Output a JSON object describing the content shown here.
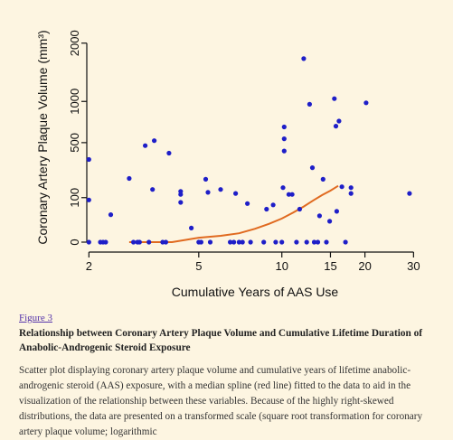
{
  "chart_data": {
    "type": "scatter",
    "title": "",
    "xlabel": "Cumulative Years of AAS Use",
    "ylabel": "Coronary Artery Plaque Volume (mm³)",
    "x_scale": "log",
    "y_scale": "sqrt",
    "xlim": [
      1.85,
      33
    ],
    "ylim": [
      0,
      2200
    ],
    "x_ticks": [
      2,
      5,
      10,
      15,
      20,
      30
    ],
    "y_ticks": [
      0,
      100,
      500,
      1000,
      2000
    ],
    "point_color": "#1e1ec8",
    "curve_color": "#e06a20",
    "series": [
      {
        "type": "scatter",
        "points": [
          {
            "x": 2,
            "y": 345
          },
          {
            "x": 2,
            "y": 90
          },
          {
            "x": 2,
            "y": 0
          },
          {
            "x": 2.2,
            "y": 0
          },
          {
            "x": 2.25,
            "y": 0
          },
          {
            "x": 2.3,
            "y": 0
          },
          {
            "x": 2.4,
            "y": 38
          },
          {
            "x": 2.8,
            "y": 205
          },
          {
            "x": 2.9,
            "y": 0
          },
          {
            "x": 3.0,
            "y": 0
          },
          {
            "x": 3.05,
            "y": 0
          },
          {
            "x": 3.2,
            "y": 470
          },
          {
            "x": 3.3,
            "y": 0
          },
          {
            "x": 3.4,
            "y": 140
          },
          {
            "x": 3.45,
            "y": 520
          },
          {
            "x": 3.7,
            "y": 0
          },
          {
            "x": 3.8,
            "y": 0
          },
          {
            "x": 3.9,
            "y": 400
          },
          {
            "x": 4.3,
            "y": 130
          },
          {
            "x": 4.3,
            "y": 115
          },
          {
            "x": 4.3,
            "y": 80
          },
          {
            "x": 4.7,
            "y": 10
          },
          {
            "x": 5.0,
            "y": 0
          },
          {
            "x": 5.1,
            "y": 0
          },
          {
            "x": 5.3,
            "y": 200
          },
          {
            "x": 5.4,
            "y": 125
          },
          {
            "x": 5.5,
            "y": 0
          },
          {
            "x": 6.0,
            "y": 140
          },
          {
            "x": 6.5,
            "y": 0
          },
          {
            "x": 6.7,
            "y": 0
          },
          {
            "x": 6.8,
            "y": 120
          },
          {
            "x": 7.0,
            "y": 0
          },
          {
            "x": 7.2,
            "y": 0
          },
          {
            "x": 7.5,
            "y": 75
          },
          {
            "x": 7.7,
            "y": 0
          },
          {
            "x": 8.6,
            "y": 0
          },
          {
            "x": 8.8,
            "y": 55
          },
          {
            "x": 9.3,
            "y": 70
          },
          {
            "x": 9.5,
            "y": 0
          },
          {
            "x": 10.0,
            "y": 0
          },
          {
            "x": 10.2,
            "y": 670
          },
          {
            "x": 10.2,
            "y": 540
          },
          {
            "x": 10.2,
            "y": 420
          },
          {
            "x": 10.1,
            "y": 150
          },
          {
            "x": 10.6,
            "y": 115
          },
          {
            "x": 10.9,
            "y": 115
          },
          {
            "x": 11.3,
            "y": 0
          },
          {
            "x": 11.6,
            "y": 55
          },
          {
            "x": 12.0,
            "y": 1700
          },
          {
            "x": 12.3,
            "y": 0
          },
          {
            "x": 12.6,
            "y": 960
          },
          {
            "x": 12.9,
            "y": 280
          },
          {
            "x": 13.1,
            "y": 0
          },
          {
            "x": 13.5,
            "y": 0
          },
          {
            "x": 13.7,
            "y": 35
          },
          {
            "x": 14.1,
            "y": 200
          },
          {
            "x": 14.5,
            "y": 0
          },
          {
            "x": 14.9,
            "y": 22
          },
          {
            "x": 15.5,
            "y": 1040
          },
          {
            "x": 15.7,
            "y": 680
          },
          {
            "x": 16.1,
            "y": 740
          },
          {
            "x": 15.8,
            "y": 48
          },
          {
            "x": 16.5,
            "y": 155
          },
          {
            "x": 17.0,
            "y": 0
          },
          {
            "x": 17.8,
            "y": 150
          },
          {
            "x": 17.8,
            "y": 120
          },
          {
            "x": 20.2,
            "y": 980
          },
          {
            "x": 29.0,
            "y": 120
          }
        ]
      },
      {
        "type": "line",
        "points": [
          {
            "x": 2.8,
            "y": 0
          },
          {
            "x": 4.0,
            "y": 0
          },
          {
            "x": 5.0,
            "y": 1
          },
          {
            "x": 6.0,
            "y": 2
          },
          {
            "x": 7.0,
            "y": 4
          },
          {
            "x": 8.0,
            "y": 9
          },
          {
            "x": 9.0,
            "y": 17
          },
          {
            "x": 10.0,
            "y": 28
          },
          {
            "x": 11.0,
            "y": 44
          },
          {
            "x": 12.0,
            "y": 64
          },
          {
            "x": 13.0,
            "y": 88
          },
          {
            "x": 14.0,
            "y": 112
          },
          {
            "x": 15.0,
            "y": 134
          },
          {
            "x": 16.0,
            "y": 160
          }
        ]
      }
    ]
  },
  "caption": {
    "link_text": "Figure 3",
    "title": "Relationship between Coronary Artery Plaque Volume and Cumulative Lifetime Duration of Anabolic-Androgenic Steroid Exposure",
    "body": "Scatter plot displaying coronary artery plaque volume and cumulative years of lifetime anabolic-androgenic steroid (AAS) exposure, with a median spline (red line) fitted to the data to aid in the visualization of the relationship between these variables. Because of the highly right-skewed distributions, the data are presented on a transformed scale (square root transformation for coronary artery plaque volume; logarithmic"
  }
}
